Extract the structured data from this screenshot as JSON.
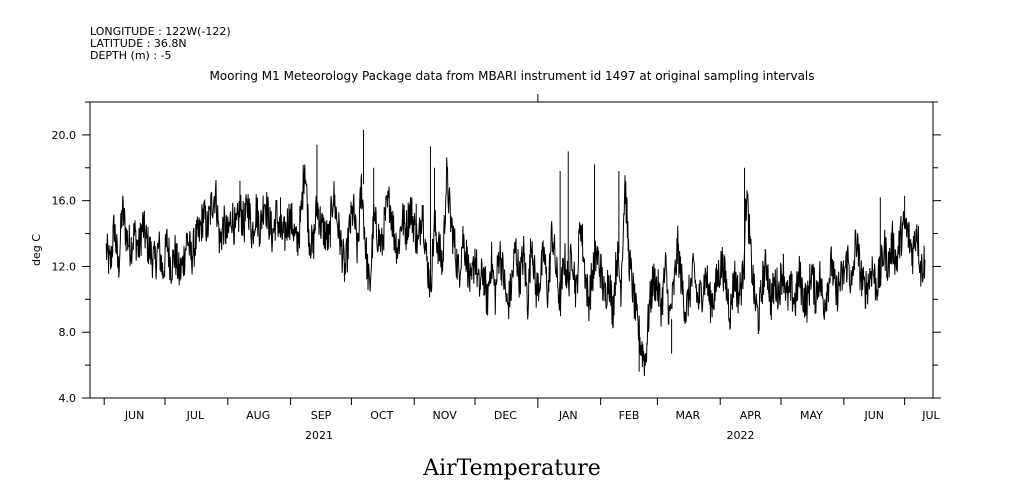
{
  "header": {
    "lines": [
      "LONGITUDE : 122W(-122)",
      "LATITUDE : 36.8N",
      "DEPTH (m) : -5"
    ],
    "title": "Mooring M1 Meteorology Package data from MBARI instrument id 1497 at original sampling intervals"
  },
  "chart_data": {
    "type": "line",
    "title": "Mooring M1 Meteorology Package data from MBARI instrument id 1497 at original sampling intervals",
    "variable": "AirTemperature",
    "xlabel": "",
    "ylabel": "deg C",
    "xlim": [
      "2021-05-25",
      "2022-07-15"
    ],
    "ylim": [
      4.0,
      22.0
    ],
    "y_ticks": [
      4.0,
      8.0,
      12.0,
      16.0,
      20.0
    ],
    "y_tick_labels": [
      "4.0",
      "8.0",
      "12.0",
      "16.0",
      "20.0"
    ],
    "x_month_labels": [
      {
        "label": "JUN",
        "date": "2021-06-16"
      },
      {
        "label": "JUL",
        "date": "2021-07-16"
      },
      {
        "label": "AUG",
        "date": "2021-08-16"
      },
      {
        "label": "SEP",
        "date": "2021-09-16"
      },
      {
        "label": "OCT",
        "date": "2021-10-16"
      },
      {
        "label": "NOV",
        "date": "2021-11-16"
      },
      {
        "label": "DEC",
        "date": "2021-12-16"
      },
      {
        "label": "JAN",
        "date": "2022-01-16"
      },
      {
        "label": "FEB",
        "date": "2022-02-15"
      },
      {
        "label": "MAR",
        "date": "2022-03-16"
      },
      {
        "label": "APR",
        "date": "2022-04-16"
      },
      {
        "label": "MAY",
        "date": "2022-05-16"
      },
      {
        "label": "JUN",
        "date": "2022-06-16"
      },
      {
        "label": "JUL",
        "date": "2022-07-14"
      }
    ],
    "x_month_boundaries": [
      "2021-06-01",
      "2021-07-01",
      "2021-08-01",
      "2021-09-01",
      "2021-10-01",
      "2021-11-01",
      "2021-12-01",
      "2022-01-01",
      "2022-02-01",
      "2022-03-01",
      "2022-04-01",
      "2022-05-01",
      "2022-06-01",
      "2022-07-01"
    ],
    "x_year_labels": [
      {
        "label": "2021",
        "date": "2021-09-15"
      },
      {
        "label": "2022",
        "date": "2022-04-11"
      }
    ],
    "grid": false,
    "legend": "none",
    "line_color": "#000000",
    "series": [
      {
        "x": [
          "2021-06-02",
          "2021-06-04",
          "2021-06-06",
          "2021-06-08",
          "2021-06-10",
          "2021-06-12",
          "2021-06-14",
          "2021-06-16",
          "2021-06-18",
          "2021-06-20",
          "2021-06-22",
          "2021-06-24",
          "2021-06-26",
          "2021-06-28",
          "2021-06-30",
          "2021-07-02",
          "2021-07-04",
          "2021-07-06",
          "2021-07-08",
          "2021-07-10",
          "2021-07-12",
          "2021-07-14",
          "2021-07-16",
          "2021-07-18",
          "2021-07-20",
          "2021-07-22",
          "2021-07-24",
          "2021-07-26",
          "2021-07-28",
          "2021-07-30",
          "2021-08-01",
          "2021-08-03",
          "2021-08-05",
          "2021-08-07",
          "2021-08-09",
          "2021-08-11",
          "2021-08-13",
          "2021-08-15",
          "2021-08-17",
          "2021-08-19",
          "2021-08-21",
          "2021-08-23",
          "2021-08-25",
          "2021-08-27",
          "2021-08-29",
          "2021-08-31",
          "2021-09-02",
          "2021-09-04",
          "2021-09-06",
          "2021-09-08",
          "2021-09-10",
          "2021-09-12",
          "2021-09-14",
          "2021-09-16",
          "2021-09-18",
          "2021-09-20",
          "2021-09-22",
          "2021-09-24",
          "2021-09-26",
          "2021-09-28",
          "2021-09-30",
          "2021-10-02",
          "2021-10-04",
          "2021-10-06",
          "2021-10-08",
          "2021-10-10",
          "2021-10-12",
          "2021-10-14",
          "2021-10-16",
          "2021-10-18",
          "2021-10-20",
          "2021-10-22",
          "2021-10-24",
          "2021-10-26",
          "2021-10-28",
          "2021-10-30",
          "2021-11-01",
          "2021-11-03",
          "2021-11-05",
          "2021-11-07",
          "2021-11-09",
          "2021-11-11",
          "2021-11-13",
          "2021-11-15",
          "2021-11-17",
          "2021-11-19",
          "2021-11-21",
          "2021-11-23",
          "2021-11-25",
          "2021-11-27",
          "2021-11-29",
          "2021-12-01",
          "2021-12-03",
          "2021-12-05",
          "2021-12-07",
          "2021-12-09",
          "2021-12-11",
          "2021-12-13",
          "2021-12-15",
          "2021-12-17",
          "2021-12-19",
          "2021-12-21",
          "2021-12-23",
          "2021-12-25",
          "2021-12-27",
          "2021-12-29",
          "2021-12-31",
          "2022-01-02",
          "2022-01-04",
          "2022-01-06",
          "2022-01-08",
          "2022-01-10",
          "2022-01-12",
          "2022-01-14",
          "2022-01-16",
          "2022-01-18",
          "2022-01-20",
          "2022-01-22",
          "2022-01-24",
          "2022-01-26",
          "2022-01-28",
          "2022-01-30",
          "2022-02-01",
          "2022-02-03",
          "2022-02-05",
          "2022-02-07",
          "2022-02-09",
          "2022-02-11",
          "2022-02-13",
          "2022-02-15",
          "2022-02-17",
          "2022-02-19",
          "2022-02-21",
          "2022-02-23",
          "2022-02-25",
          "2022-02-27",
          "2022-03-01",
          "2022-03-03",
          "2022-03-05",
          "2022-03-07",
          "2022-03-09",
          "2022-03-11",
          "2022-03-13",
          "2022-03-15",
          "2022-03-17",
          "2022-03-19",
          "2022-03-21",
          "2022-03-23",
          "2022-03-25",
          "2022-03-27",
          "2022-03-29",
          "2022-03-31",
          "2022-04-02",
          "2022-04-04",
          "2022-04-06",
          "2022-04-08",
          "2022-04-10",
          "2022-04-12",
          "2022-04-14",
          "2022-04-16",
          "2022-04-18",
          "2022-04-20",
          "2022-04-22",
          "2022-04-24",
          "2022-04-26",
          "2022-04-28",
          "2022-04-30",
          "2022-05-02",
          "2022-05-04",
          "2022-05-06",
          "2022-05-08",
          "2022-05-10",
          "2022-05-12",
          "2022-05-14",
          "2022-05-16",
          "2022-05-18",
          "2022-05-20",
          "2022-05-22",
          "2022-05-24",
          "2022-05-26",
          "2022-05-28",
          "2022-05-30",
          "2022-06-01",
          "2022-06-03",
          "2022-06-05",
          "2022-06-07",
          "2022-06-09",
          "2022-06-11",
          "2022-06-13",
          "2022-06-15",
          "2022-06-17",
          "2022-06-19",
          "2022-06-21",
          "2022-06-23",
          "2022-06-25",
          "2022-06-27",
          "2022-06-29",
          "2022-07-01",
          "2022-07-03",
          "2022-07-05",
          "2022-07-07",
          "2022-07-09",
          "2022-07-11"
        ],
        "y": [
          13.0,
          12.0,
          14.5,
          11.8,
          15.5,
          13.8,
          13.2,
          14.0,
          13.0,
          14.5,
          13.5,
          12.8,
          12.2,
          13.2,
          11.6,
          13.5,
          12.0,
          12.8,
          11.5,
          12.2,
          13.8,
          12.5,
          13.5,
          14.0,
          15.2,
          14.2,
          15.8,
          16.5,
          13.5,
          14.5,
          13.8,
          15.2,
          14.0,
          15.5,
          14.5,
          15.8,
          14.0,
          15.5,
          14.2,
          16.2,
          15.0,
          13.8,
          15.2,
          14.0,
          13.8,
          15.0,
          14.6,
          13.2,
          14.8,
          18.5,
          14.0,
          13.0,
          15.8,
          14.5,
          14.0,
          13.5,
          16.5,
          14.8,
          13.2,
          11.6,
          14.2,
          15.5,
          12.8,
          17.0,
          13.2,
          10.5,
          14.8,
          14.0,
          13.2,
          15.2,
          16.0,
          14.0,
          13.0,
          15.0,
          14.2,
          15.6,
          14.5,
          13.2,
          15.8,
          12.5,
          10.8,
          14.5,
          13.2,
          12.0,
          17.5,
          14.8,
          13.2,
          11.5,
          13.8,
          12.5,
          10.5,
          12.8,
          10.5,
          11.8,
          9.8,
          12.5,
          10.2,
          13.0,
          11.5,
          9.5,
          10.8,
          13.2,
          11.2,
          12.8,
          9.8,
          13.8,
          10.5,
          11.2,
          12.8,
          10.2,
          14.2,
          11.8,
          9.8,
          12.5,
          11.0,
          13.0,
          10.2,
          15.0,
          12.0,
          9.8,
          11.5,
          12.8,
          11.8,
          10.0,
          11.5,
          9.2,
          12.8,
          10.8,
          17.2,
          12.5,
          10.5,
          8.5,
          7.2,
          6.2,
          9.5,
          11.2,
          10.8,
          9.5,
          12.0,
          8.8,
          10.5,
          13.2,
          11.0,
          9.2,
          10.5,
          11.8,
          9.8,
          10.5,
          11.5,
          9.8,
          10.2,
          11.5,
          12.2,
          10.8,
          9.2,
          11.5,
          10.2,
          11.2,
          16.5,
          12.8,
          10.0,
          8.8,
          11.2,
          12.2,
          9.8,
          11.0,
          10.5,
          12.0,
          10.0,
          10.5,
          9.8,
          11.5,
          10.2,
          9.8,
          11.8,
          10.2,
          11.5,
          9.6,
          10.8,
          12.2,
          10.2,
          11.0,
          11.5,
          12.5,
          10.5,
          13.8,
          11.8,
          10.5,
          11.0,
          12.0,
          10.8,
          11.5,
          13.2,
          12.0,
          13.5,
          12.2,
          13.8,
          14.5,
          13.8,
          12.8,
          14.5,
          11.8,
          12.4
        ]
      }
    ],
    "spikes": [
      {
        "x": "2021-08-07",
        "y": 17.2
      },
      {
        "x": "2021-08-27",
        "y": 16.2
      },
      {
        "x": "2021-09-14",
        "y": 19.4
      },
      {
        "x": "2021-10-07",
        "y": 20.3
      },
      {
        "x": "2021-10-12",
        "y": 18.0
      },
      {
        "x": "2021-11-02",
        "y": 15.8
      },
      {
        "x": "2021-11-09",
        "y": 19.3
      },
      {
        "x": "2021-11-11",
        "y": 18.0
      },
      {
        "x": "2022-01-12",
        "y": 17.8
      },
      {
        "x": "2022-01-16",
        "y": 19.0
      },
      {
        "x": "2022-01-29",
        "y": 18.2
      },
      {
        "x": "2022-02-10",
        "y": 17.8
      },
      {
        "x": "2022-02-20",
        "y": 5.6
      },
      {
        "x": "2022-03-08",
        "y": 6.7
      },
      {
        "x": "2022-04-13",
        "y": 18.0
      },
      {
        "x": "2022-06-19",
        "y": 16.2
      },
      {
        "x": "2022-07-01",
        "y": 16.3
      }
    ]
  }
}
